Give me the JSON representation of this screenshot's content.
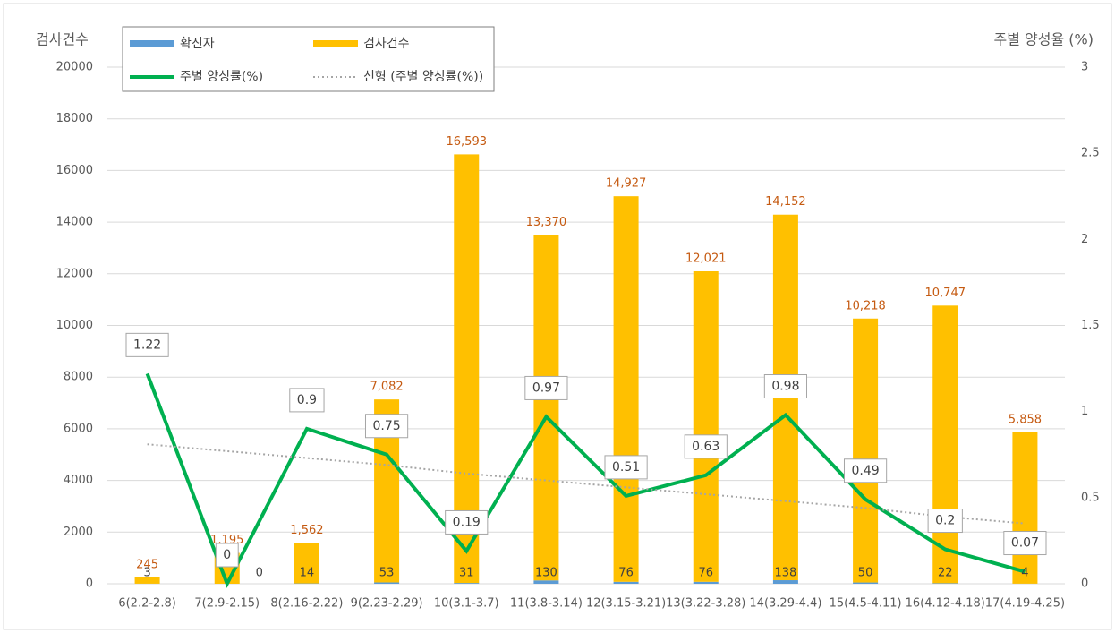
{
  "chart_data": {
    "type": "bar",
    "stacked": true,
    "y_label": "검사건수",
    "y2_label": "주별 양성율 (%)",
    "categories": [
      "6(2.2-2.8)",
      "7(2.9-2.15)",
      "8(2.16-2.22)",
      "9(2.23-2.29)",
      "10(3.1-3.7)",
      "11(3.8-3.14)",
      "12(3.15-3.21)",
      "13(3.22-3.28)",
      "14(3.29-4.4)",
      "15(4.5-4.11)",
      "16(4.12-4.18)",
      "17(4.19-4.25)"
    ],
    "series": [
      {
        "name": "확진자",
        "type": "bar",
        "color": "#5b9bd5",
        "label_color": "#404040",
        "values": [
          3,
          0,
          14,
          53,
          31,
          130,
          76,
          76,
          138,
          50,
          22,
          4
        ]
      },
      {
        "name": "검사건수",
        "type": "bar",
        "color": "#ffc000",
        "label_color": "#c55a11",
        "values": [
          245,
          1195,
          1562,
          7082,
          16593,
          13370,
          14927,
          12021,
          14152,
          10218,
          10747,
          5858
        ],
        "value_labels": [
          "245",
          "1,195",
          "1,562",
          "7,082",
          "16,593",
          "13,370",
          "14,927",
          "12,021",
          "14,152",
          "10,218",
          "10,747",
          "5,858"
        ]
      },
      {
        "name": "주별 양싱률(%)",
        "type": "line",
        "axis": "y2",
        "color": "#00b050",
        "values": [
          1.22,
          0,
          0.9,
          0.75,
          0.19,
          0.97,
          0.51,
          0.63,
          0.98,
          0.49,
          0.2,
          0.07
        ]
      },
      {
        "name": "신형 (주별 양싱률(%))",
        "type": "trendline",
        "axis": "y2",
        "color": "#a5a5a5",
        "values": [
          0.81,
          0.77,
          0.73,
          0.69,
          0.64,
          0.6,
          0.56,
          0.52,
          0.48,
          0.44,
          0.39,
          0.35
        ]
      }
    ],
    "ylim": [
      0,
      20000
    ],
    "yticks": [
      0,
      2000,
      4000,
      6000,
      8000,
      10000,
      12000,
      14000,
      16000,
      18000,
      20000
    ],
    "y2lim": [
      0,
      3
    ],
    "y2ticks": [
      0,
      0.5,
      1,
      1.5,
      2,
      2.5,
      3
    ],
    "grid": true
  }
}
